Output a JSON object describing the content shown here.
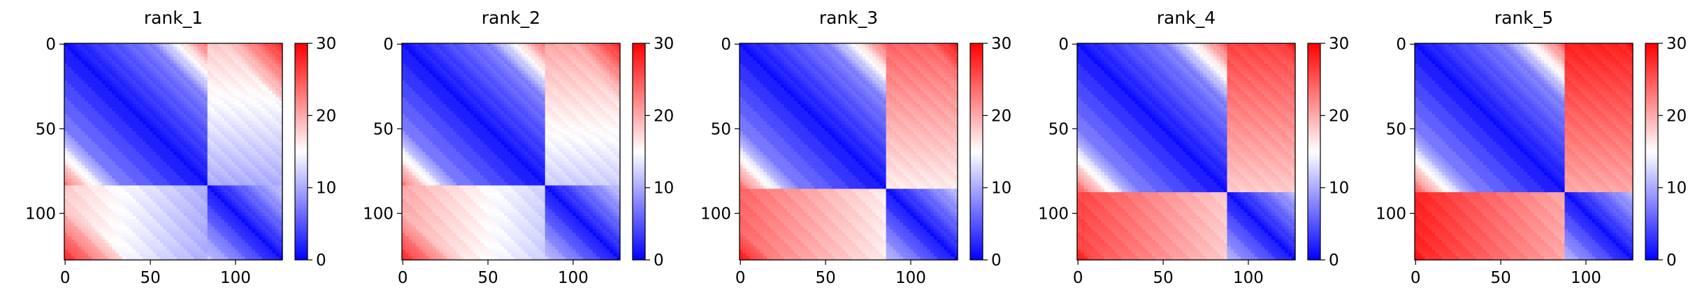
{
  "chart_data": [
    {
      "type": "heatmap",
      "title": "rank_1",
      "size": 128,
      "x_ticks": [
        0,
        50,
        100
      ],
      "y_ticks": [
        0,
        50,
        100
      ],
      "colorbar": {
        "min": 0,
        "max": 30,
        "ticks": [
          0,
          10,
          20,
          30
        ],
        "colormap": "bwr"
      },
      "block_boundary": 84,
      "features": {
        "cross_offdiag_value": 18,
        "corner_value": 28
      }
    },
    {
      "type": "heatmap",
      "title": "rank_2",
      "size": 128,
      "x_ticks": [
        0,
        50,
        100
      ],
      "y_ticks": [
        0,
        50,
        100
      ],
      "colorbar": {
        "min": 0,
        "max": 30,
        "ticks": [
          0,
          10,
          20,
          30
        ],
        "colormap": "bwr"
      },
      "block_boundary": 84,
      "features": {
        "cross_offdiag_value": 20,
        "corner_value": 28
      }
    },
    {
      "type": "heatmap",
      "title": "rank_3",
      "size": 128,
      "x_ticks": [
        0,
        50,
        100
      ],
      "y_ticks": [
        0,
        50,
        100
      ],
      "colorbar": {
        "min": 0,
        "max": 30,
        "ticks": [
          0,
          10,
          20,
          30
        ],
        "colormap": "bwr"
      },
      "block_boundary": 86,
      "features": {
        "cross_offdiag_value": 24,
        "corner_value": 29
      }
    },
    {
      "type": "heatmap",
      "title": "rank_4",
      "size": 128,
      "x_ticks": [
        0,
        50,
        100
      ],
      "y_ticks": [
        0,
        50,
        100
      ],
      "colorbar": {
        "min": 0,
        "max": 30,
        "ticks": [
          0,
          10,
          20,
          30
        ],
        "colormap": "bwr"
      },
      "block_boundary": 87,
      "features": {
        "cross_offdiag_value": 26,
        "corner_value": 29
      }
    },
    {
      "type": "heatmap",
      "title": "rank_5",
      "size": 128,
      "x_ticks": [
        0,
        50,
        100
      ],
      "y_ticks": [
        0,
        50,
        100
      ],
      "colorbar": {
        "min": 0,
        "max": 30,
        "ticks": [
          0,
          10,
          20,
          30
        ],
        "colormap": "bwr"
      },
      "block_boundary": 88,
      "features": {
        "cross_offdiag_value": 28,
        "corner_value": 30
      }
    }
  ]
}
